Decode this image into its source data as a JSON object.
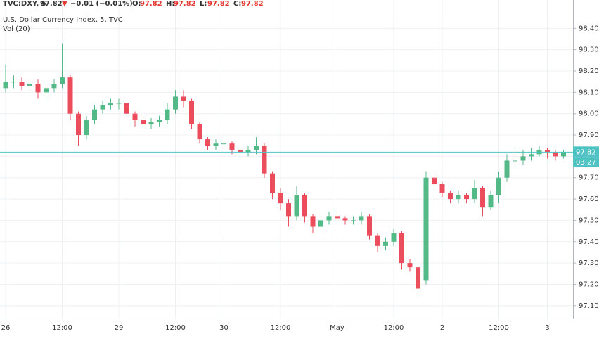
{
  "header": {
    "symbol": "TVC:DXY, 5",
    "last": "97.82",
    "arrow": "▼",
    "change": "−0.01 (−0.01%)",
    "ohlc": [
      {
        "label": "O:",
        "value": "97.82"
      },
      {
        "label": "H:",
        "value": "97.82"
      },
      {
        "label": "L:",
        "value": "97.82"
      },
      {
        "label": "C:",
        "value": "97.82"
      }
    ]
  },
  "chart_data": {
    "type": "candlestick",
    "title": "U.S. Dollar Currency Index, 5, TVC",
    "subtitle": "Vol (20)",
    "up_color": "#53b987",
    "down_color": "#eb4d5c",
    "grid": true,
    "categories": [
      "26",
      null,
      null,
      null,
      null,
      null,
      null,
      "12:00",
      null,
      null,
      null,
      null,
      null,
      null,
      "29",
      null,
      null,
      null,
      null,
      null,
      null,
      "12:00",
      null,
      null,
      null,
      null,
      null,
      "30",
      null,
      null,
      null,
      null,
      null,
      null,
      "12:00",
      null,
      null,
      null,
      null,
      null,
      null,
      "May",
      null,
      null,
      null,
      null,
      null,
      null,
      "12:00",
      null,
      null,
      null,
      null,
      null,
      "2",
      null,
      null,
      null,
      null,
      null,
      null,
      "12:00",
      null,
      null,
      null,
      null,
      null,
      "3",
      null,
      null
    ],
    "open": [
      98.12,
      98.15,
      98.15,
      98.13,
      98.14,
      98.1,
      98.12,
      98.14,
      98.17,
      98.0,
      97.9,
      97.97,
      98.02,
      98.04,
      98.05,
      98.05,
      98.0,
      97.97,
      97.95,
      97.96,
      97.97,
      98.02,
      98.08,
      98.06,
      97.95,
      97.88,
      97.85,
      97.86,
      97.86,
      97.83,
      97.82,
      97.83,
      97.85,
      97.72,
      97.63,
      97.58,
      97.52,
      97.62,
      97.52,
      97.47,
      97.5,
      97.52,
      97.51,
      97.5,
      97.5,
      97.52,
      97.43,
      97.38,
      97.4,
      97.44,
      97.3,
      97.28,
      97.22,
      97.7,
      97.67,
      97.63,
      97.6,
      97.62,
      97.6,
      97.65,
      97.56,
      97.62,
      97.7,
      97.78,
      97.78,
      97.8,
      97.81,
      97.83,
      97.82,
      97.8
    ],
    "high": [
      98.23,
      98.18,
      98.17,
      98.16,
      98.16,
      98.14,
      98.16,
      98.33,
      98.18,
      98.01,
      97.99,
      98.04,
      98.06,
      98.07,
      98.07,
      98.06,
      98.01,
      97.99,
      97.98,
      97.99,
      98.05,
      98.11,
      98.11,
      98.07,
      97.96,
      97.89,
      97.88,
      97.88,
      97.87,
      97.84,
      97.85,
      97.89,
      97.86,
      97.73,
      97.65,
      97.6,
      97.66,
      97.63,
      97.53,
      97.52,
      97.54,
      97.54,
      97.52,
      97.52,
      97.54,
      97.53,
      97.44,
      97.42,
      97.46,
      97.45,
      97.32,
      97.29,
      97.73,
      97.72,
      97.68,
      97.64,
      97.64,
      97.63,
      97.69,
      97.66,
      97.64,
      97.73,
      97.81,
      97.84,
      97.83,
      97.84,
      97.85,
      97.84,
      97.83,
      97.83
    ],
    "low": [
      98.1,
      98.12,
      98.11,
      98.11,
      98.07,
      98.08,
      98.1,
      98.12,
      97.97,
      97.85,
      97.88,
      97.95,
      98.0,
      98.02,
      98.02,
      97.98,
      97.94,
      97.93,
      97.93,
      97.94,
      97.95,
      98.0,
      98.03,
      97.93,
      97.86,
      97.83,
      97.83,
      97.84,
      97.81,
      97.8,
      97.8,
      97.81,
      97.7,
      97.6,
      97.55,
      97.47,
      97.5,
      97.49,
      97.44,
      97.45,
      97.48,
      97.49,
      97.48,
      97.48,
      97.48,
      97.41,
      97.35,
      97.36,
      97.38,
      97.27,
      97.26,
      97.15,
      97.2,
      97.65,
      97.61,
      97.58,
      97.58,
      97.58,
      97.58,
      97.52,
      97.55,
      97.58,
      97.68,
      97.75,
      97.76,
      97.78,
      97.8,
      97.79,
      97.78,
      97.79
    ],
    "close": [
      98.15,
      98.15,
      98.13,
      98.14,
      98.1,
      98.12,
      98.14,
      98.17,
      98.0,
      97.9,
      97.97,
      98.02,
      98.04,
      98.05,
      98.05,
      98.0,
      97.97,
      97.95,
      97.96,
      97.97,
      98.02,
      98.08,
      98.06,
      97.95,
      97.88,
      97.85,
      97.86,
      97.86,
      97.83,
      97.82,
      97.83,
      97.85,
      97.72,
      97.63,
      97.58,
      97.52,
      97.62,
      97.52,
      97.47,
      97.5,
      97.52,
      97.51,
      97.5,
      97.5,
      97.52,
      97.43,
      97.38,
      97.4,
      97.44,
      97.3,
      97.28,
      97.18,
      97.7,
      97.67,
      97.63,
      97.6,
      97.62,
      97.6,
      97.65,
      97.56,
      97.62,
      97.7,
      97.78,
      97.78,
      97.8,
      97.81,
      97.83,
      97.82,
      97.8,
      97.82
    ],
    "ylim": [
      97.04,
      98.5
    ],
    "yticks": [
      {
        "value": 97.1,
        "label": "97.10"
      },
      {
        "value": 97.2,
        "label": "97.20"
      },
      {
        "value": 97.3,
        "label": "97.30"
      },
      {
        "value": 97.4,
        "label": "97.40"
      },
      {
        "value": 97.5,
        "label": "97.50"
      },
      {
        "value": 97.6,
        "label": "97.60"
      },
      {
        "value": 97.7,
        "label": "97.70"
      },
      {
        "value": 97.8,
        "label": "97.80"
      },
      {
        "value": 97.9,
        "label": "97.90"
      },
      {
        "value": 98.0,
        "label": "98.00"
      },
      {
        "value": 98.1,
        "label": "98.10"
      },
      {
        "value": 98.2,
        "label": "98.20"
      },
      {
        "value": 98.3,
        "label": "98.30"
      },
      {
        "value": 98.4,
        "label": "98.40"
      }
    ],
    "last_price": 97.82,
    "price_line_color": "#4fc3c3",
    "countdown": "03:27"
  }
}
